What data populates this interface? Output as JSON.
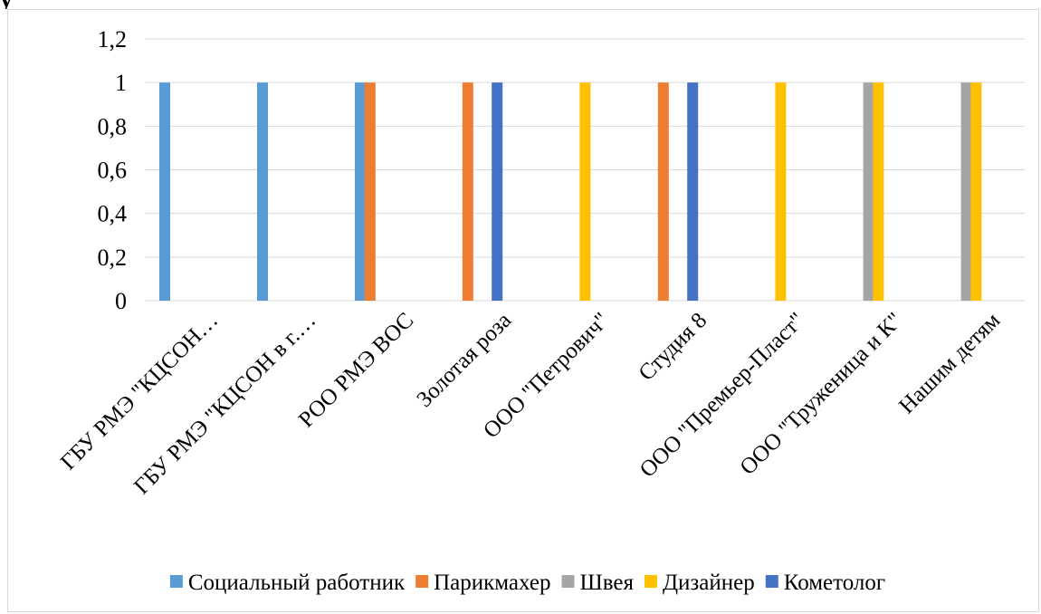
{
  "header_fragment": "у",
  "chart_data": {
    "type": "bar",
    "title": "",
    "xlabel": "",
    "ylabel": "",
    "ylim": [
      0,
      1.2
    ],
    "yticks": [
      "0",
      "0,2",
      "0,4",
      "0,6",
      "0,8",
      "1",
      "1,2"
    ],
    "grid": true,
    "legend_position": "bottom",
    "categories": [
      "ГБУ РМЭ \"КЦСОН…",
      "ГБУ РМЭ \"КЦСОН в г.…",
      "РОО РМЭ ВОС",
      "Золотая роза",
      "ООО \"Петрович\"",
      "Студия 8",
      "ООО \"Премьер-Пласт\"",
      "ООО \"Труженица и К\"",
      "Нашим детям"
    ],
    "series": [
      {
        "name": "Социальный работник",
        "color": "#5b9bd5",
        "values": [
          1,
          1,
          1,
          0,
          0,
          0,
          0,
          0,
          0
        ]
      },
      {
        "name": "Парикмахер",
        "color": "#ed7d31",
        "values": [
          0,
          0,
          1,
          1,
          0,
          1,
          0,
          0,
          0
        ]
      },
      {
        "name": "Швея",
        "color": "#a5a5a5",
        "values": [
          0,
          0,
          0,
          0,
          0,
          0,
          0,
          1,
          1
        ]
      },
      {
        "name": "Дизайнер",
        "color": "#ffc000",
        "values": [
          0,
          0,
          0,
          0,
          1,
          0,
          1,
          1,
          1
        ]
      },
      {
        "name": "Кометолог",
        "color": "#4472c4",
        "values": [
          0,
          0,
          0,
          1,
          0,
          1,
          0,
          0,
          0
        ]
      }
    ]
  }
}
